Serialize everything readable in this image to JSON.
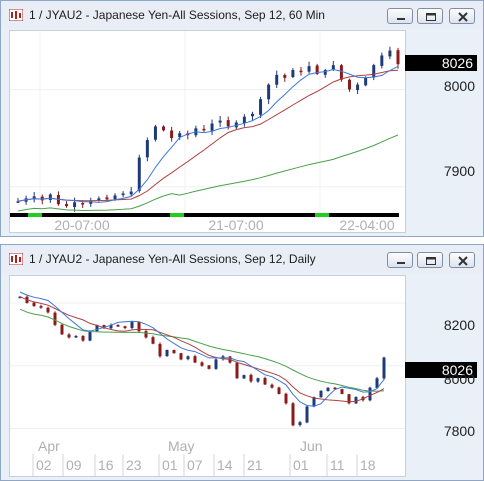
{
  "windows": [
    {
      "title": "1 / JYAU2 - Japanese Yen-All Sessions, Sep 12, 60 Min",
      "last_price": "8026",
      "price_labels": [
        "8000",
        "7900"
      ],
      "time_labels": [
        "20-07:00",
        "21-07:00",
        "22-04:00"
      ],
      "chart_data": {
        "type": "candlestick",
        "x_axis": [
          "20-07:00",
          "21-07:00",
          "22-04:00"
        ],
        "y_ticks": [
          8000,
          7900
        ],
        "ylim": [
          7875,
          8055
        ],
        "last": 8026
      }
    },
    {
      "title": "1 / JYAU2 - Japanese Yen-All Sessions, Sep 12, Daily",
      "last_price": "8026",
      "price_labels": [
        "8200",
        "8000",
        "7800"
      ],
      "month_labels": [
        "Apr",
        "May",
        "Jun"
      ],
      "day_labels": [
        "02",
        "09",
        "16",
        "23",
        "01",
        "07",
        "14",
        "21",
        "01",
        "11",
        "18"
      ],
      "chart_data": {
        "type": "candlestick",
        "x_months": [
          "Apr",
          "May",
          "Jun"
        ],
        "x_days": [
          "02",
          "09",
          "16",
          "23",
          "01",
          "07",
          "14",
          "21",
          "01",
          "11",
          "18"
        ],
        "y_ticks": [
          8200,
          8000,
          7800
        ],
        "ylim": [
          7760,
          8270
        ],
        "last": 8026
      }
    }
  ],
  "buttons": {
    "minimize": "minimize",
    "restore": "restore",
    "close": "close"
  },
  "colors": {
    "up": "#1f3a78",
    "down": "#8b1a1a",
    "ma_fast": "#3b78d8",
    "ma_mid": "#b04040",
    "ma_slow": "#4aa04a",
    "session": "#22cc22"
  }
}
